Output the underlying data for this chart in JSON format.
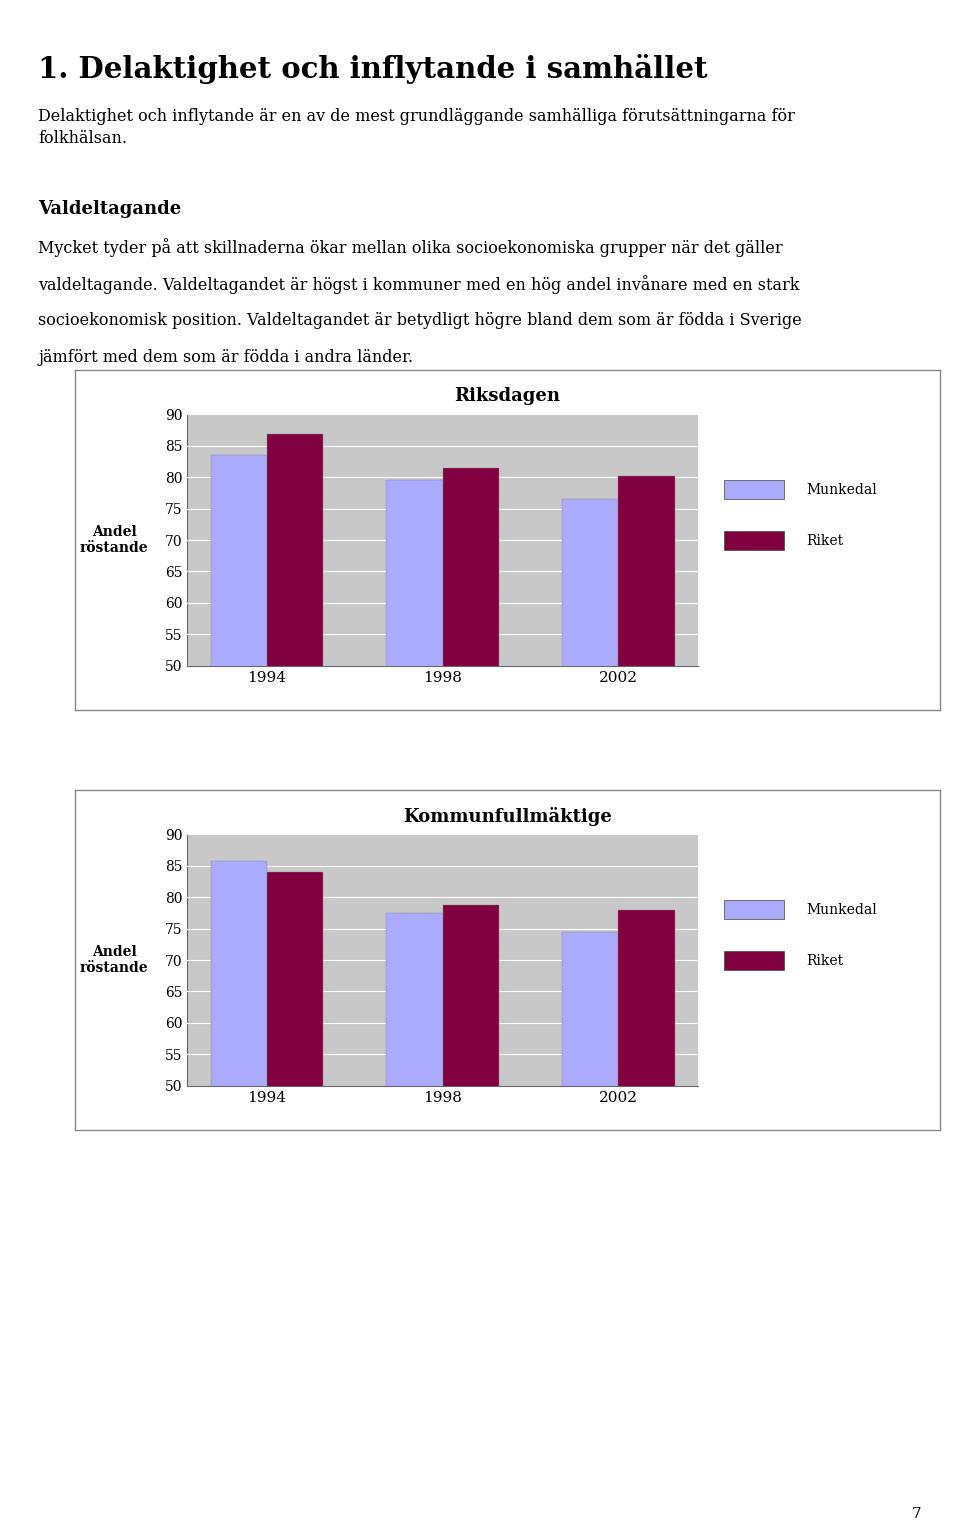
{
  "title": "1. Delaktighet och inflytande i samhället",
  "subtitle": "Delaktighet och inflytande är en av de mest grundläggande samhälliga förutsättningarna för\nfolkhälsan.",
  "section_title": "Valdeltagande",
  "body_line1": "Mycket tyder på att skillnaderna ökar mellan olika socioekonomiska grupper när det gäller",
  "body_line2": "valdeltagande. Valdeltagandet är högst i kommuner med en hög andel invånare med en stark",
  "body_line3": "socioekonomisk position. Valdeltagandet är betydligt högre bland dem som är födda i Sverige",
  "body_line4": "jämfört med dem som är födda i andra länder.",
  "chart1_title": "Riksdagen",
  "chart2_title": "Kommunfullmäktige",
  "years": [
    "1994",
    "1998",
    "2002"
  ],
  "chart1_munkedal": [
    83.5,
    79.5,
    76.5
  ],
  "chart1_riket": [
    86.8,
    81.4,
    80.1
  ],
  "chart2_munkedal": [
    85.8,
    77.5,
    74.5
  ],
  "chart2_riket": [
    84.0,
    78.8,
    78.0
  ],
  "ylim": [
    50,
    90
  ],
  "yticks": [
    50,
    55,
    60,
    65,
    70,
    75,
    80,
    85,
    90
  ],
  "ylabel": "Andel\nröstande",
  "munkedal_color": "#aaaaff",
  "riket_color": "#800040",
  "plot_bg_color": "#c8c8c8",
  "legend_munkedal": "Munkedal",
  "legend_riket": "Riket",
  "page_number": "7"
}
